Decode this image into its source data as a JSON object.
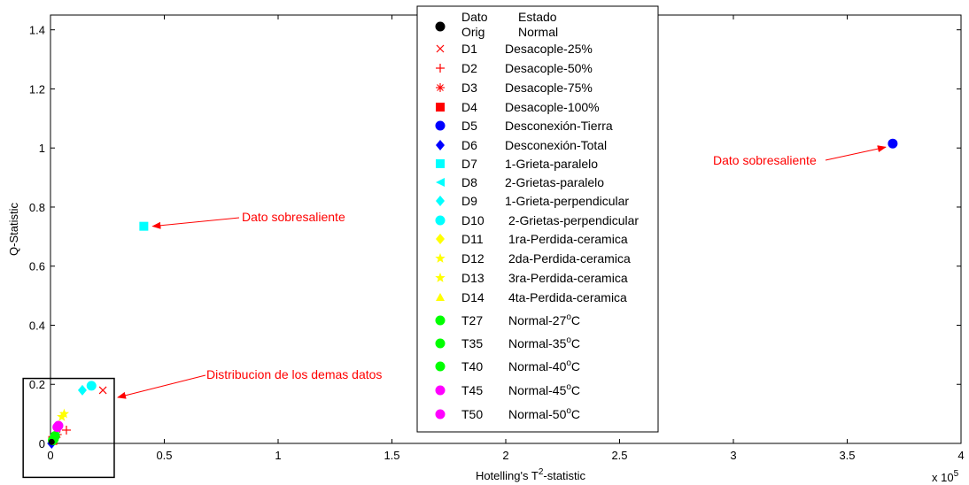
{
  "chart_data": {
    "type": "scatter",
    "title": "",
    "xlabel_prefix": "Hotelling's T",
    "xlabel_sup": "2",
    "xlabel_suffix": "-statistic",
    "ylabel": "Q-Statistic",
    "x_exponent_base": "x 10",
    "x_exponent_power": "5",
    "xlim": [
      0,
      4
    ],
    "ylim": [
      0,
      1.45
    ],
    "xticks": [
      0,
      0.5,
      1,
      1.5,
      2,
      2.5,
      3,
      3.5,
      4
    ],
    "xtick_labels": [
      "0",
      "0.5",
      "1",
      "1.5",
      "2",
      "2.5",
      "3",
      "3.5",
      "4"
    ],
    "yticks": [
      0,
      0.2,
      0.4,
      0.6,
      0.8,
      1,
      1.2,
      1.4
    ],
    "ytick_labels": [
      "0",
      "0.2",
      "0.4",
      "0.6",
      "0.8",
      "1",
      "1.2",
      "1.4"
    ],
    "grid": false,
    "legend_position": "top-center",
    "legend_header": {
      "col1_line1": "Dato",
      "col1_line2": "Orig",
      "col2_line1": "Estado",
      "col2_line2": "Normal"
    },
    "series": [
      {
        "id": "D1",
        "name": "Desacople-25%",
        "marker": "x",
        "color": "#ff0000",
        "points": [
          [
            0.23,
            0.18
          ]
        ]
      },
      {
        "id": "D2",
        "name": "Desacople-50%",
        "marker": "plus",
        "color": "#ff0000",
        "points": [
          [
            0.07,
            0.045
          ]
        ]
      },
      {
        "id": "D3",
        "name": "Desacople-75%",
        "marker": "asterisk",
        "color": "#ff0000",
        "points": [
          [
            0.03,
            0.03
          ]
        ]
      },
      {
        "id": "D4",
        "name": "Desacople-100%",
        "marker": "square",
        "color": "#ff0000",
        "points": [
          [
            0.01,
            0.01
          ]
        ]
      },
      {
        "id": "D5",
        "name": "Desconexión-Tierra",
        "marker": "circle",
        "color": "#0000ff",
        "points": [
          [
            3.7,
            1.015
          ]
        ]
      },
      {
        "id": "D6",
        "name": "Desconexión-Total",
        "marker": "diamond",
        "color": "#0000ff",
        "points": [
          [
            0.005,
            0.0
          ]
        ]
      },
      {
        "id": "D7",
        "name": "1-Grieta-paralelo",
        "marker": "square",
        "color": "#00ffff",
        "points": [
          [
            0.41,
            0.735
          ]
        ]
      },
      {
        "id": "D8",
        "name": "2-Grietas-paralelo",
        "marker": "triangle-left",
        "color": "#00ffff",
        "points": [
          [
            0.02,
            0.03
          ]
        ]
      },
      {
        "id": "D9",
        "name": "1-Grieta-perpendicular",
        "marker": "diamond",
        "color": "#00ffff",
        "points": [
          [
            0.14,
            0.18
          ]
        ]
      },
      {
        "id": "D10",
        "name": "2-Grietas-perpendicular",
        "marker": "circle",
        "color": "#00ffff",
        "points": [
          [
            0.18,
            0.195
          ]
        ]
      },
      {
        "id": "D11",
        "name": "1ra-Perdida-ceramica",
        "marker": "diamond",
        "color": "#ffff00",
        "points": [
          [
            0.03,
            0.05
          ]
        ]
      },
      {
        "id": "D12",
        "name": "2da-Perdida-ceramica",
        "marker": "star",
        "color": "#ffff00",
        "points": [
          [
            0.05,
            0.09
          ]
        ]
      },
      {
        "id": "D13",
        "name": "3ra-Perdida-ceramica",
        "marker": "star",
        "color": "#ffff00",
        "points": [
          [
            0.06,
            0.1
          ]
        ]
      },
      {
        "id": "D14",
        "name": "4ta-Perdida-ceramica",
        "marker": "triangle-up",
        "color": "#ffff00",
        "points": [
          [
            0.03,
            0.06
          ]
        ]
      },
      {
        "id": "T27",
        "name": "Normal-27",
        "marker": "circle",
        "color": "#00ff00",
        "points": [
          [
            0.01,
            0.01
          ]
        ]
      },
      {
        "id": "T35",
        "name": "Normal-35",
        "marker": "circle",
        "color": "#00ff00",
        "points": [
          [
            0.015,
            0.015
          ]
        ]
      },
      {
        "id": "T40",
        "name": "Normal-40",
        "marker": "circle",
        "color": "#00ff00",
        "points": [
          [
            0.02,
            0.025
          ]
        ]
      },
      {
        "id": "T45",
        "name": "Normal-45",
        "marker": "circle",
        "color": "#ff00ff",
        "points": [
          [
            0.03,
            0.055
          ]
        ]
      },
      {
        "id": "T50",
        "name": "Normal-50",
        "marker": "circle",
        "color": "#ff00ff",
        "points": [
          [
            0.035,
            0.06
          ]
        ]
      }
    ],
    "original_series": {
      "marker": "circle",
      "color": "#000000",
      "points": [
        [
          0.005,
          0.005
        ]
      ]
    },
    "temp_superscript": "o",
    "temp_unit": "C",
    "annotations": [
      {
        "text": "Dato sobresaliente",
        "target": [
          3.7,
          1.015
        ]
      },
      {
        "text": "Dato sobresaliente",
        "target": [
          0.41,
          0.735
        ]
      },
      {
        "text": "Distribucion de los demas datos",
        "target": [
          0.28,
          0.18
        ]
      }
    ],
    "zoom_box": {
      "x_range": [
        -0.12,
        0.28
      ],
      "y_range": [
        -0.115,
        0.22
      ]
    }
  }
}
